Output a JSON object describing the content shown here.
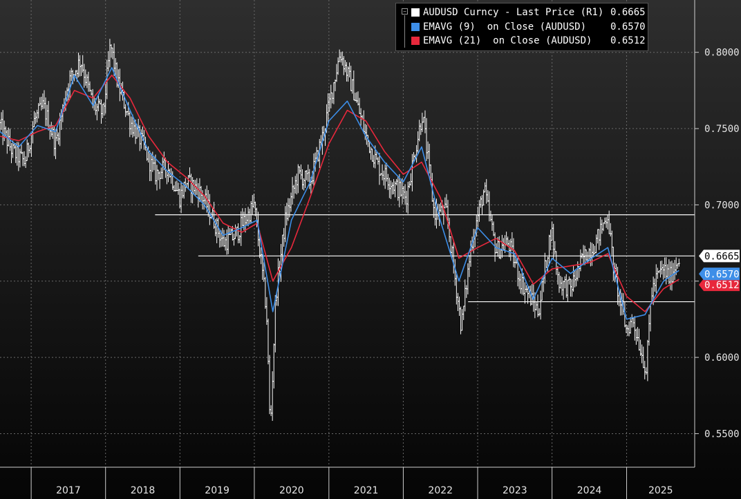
{
  "chart_data": {
    "type": "line",
    "x_axis": {
      "kind": "date",
      "labels": [
        "2017",
        "2018",
        "2019",
        "2020",
        "2021",
        "2022",
        "2023",
        "2024",
        "2025"
      ],
      "range": [
        "2016-08-01",
        "2025-12-01"
      ]
    },
    "y_axis": {
      "position": "right",
      "range": [
        0.528,
        0.8343
      ],
      "tick_labels": [
        "0.8000",
        "0.7500",
        "0.7000",
        "0.6500",
        "0.6000",
        "0.5500"
      ],
      "ticks": [
        0.8,
        0.75,
        0.7,
        0.65,
        0.6,
        0.55
      ]
    },
    "grid": true,
    "legend_position": "top-right",
    "series": [
      {
        "name": "AUDUSD Curncy - Last Price (R1)",
        "last": "0.6665",
        "color": "#ffffff",
        "points": [
          [
            "2016-08-01",
            0.752
          ],
          [
            "2016-10-01",
            0.735
          ],
          [
            "2016-12-01",
            0.728
          ],
          [
            "2017-01-15",
            0.755
          ],
          [
            "2017-03-01",
            0.765
          ],
          [
            "2017-05-01",
            0.74
          ],
          [
            "2017-07-01",
            0.78
          ],
          [
            "2017-09-01",
            0.795
          ],
          [
            "2017-11-01",
            0.765
          ],
          [
            "2017-12-20",
            0.76
          ],
          [
            "2018-01-25",
            0.805
          ],
          [
            "2018-03-01",
            0.78
          ],
          [
            "2018-05-01",
            0.755
          ],
          [
            "2018-07-01",
            0.74
          ],
          [
            "2018-09-01",
            0.72
          ],
          [
            "2018-11-01",
            0.725
          ],
          [
            "2018-12-31",
            0.705
          ],
          [
            "2019-02-01",
            0.715
          ],
          [
            "2019-04-01",
            0.71
          ],
          [
            "2019-06-01",
            0.695
          ],
          [
            "2019-08-01",
            0.675
          ],
          [
            "2019-10-01",
            0.68
          ],
          [
            "2019-12-31",
            0.7
          ],
          [
            "2020-02-01",
            0.665
          ],
          [
            "2020-03-01",
            0.63
          ],
          [
            "2020-03-19",
            0.551
          ],
          [
            "2020-04-15",
            0.64
          ],
          [
            "2020-06-01",
            0.69
          ],
          [
            "2020-08-01",
            0.72
          ],
          [
            "2020-10-01",
            0.715
          ],
          [
            "2020-12-01",
            0.745
          ],
          [
            "2021-02-25",
            0.8
          ],
          [
            "2021-05-01",
            0.775
          ],
          [
            "2021-07-01",
            0.745
          ],
          [
            "2021-09-01",
            0.725
          ],
          [
            "2021-11-01",
            0.715
          ],
          [
            "2022-01-15",
            0.705
          ],
          [
            "2022-04-05",
            0.76
          ],
          [
            "2022-06-01",
            0.695
          ],
          [
            "2022-08-01",
            0.695
          ],
          [
            "2022-10-13",
            0.62
          ],
          [
            "2022-12-01",
            0.675
          ],
          [
            "2023-02-02",
            0.71
          ],
          [
            "2023-04-01",
            0.67
          ],
          [
            "2023-06-01",
            0.675
          ],
          [
            "2023-08-01",
            0.65
          ],
          [
            "2023-10-26",
            0.63
          ],
          [
            "2023-12-28",
            0.685
          ],
          [
            "2024-02-01",
            0.65
          ],
          [
            "2024-04-01",
            0.645
          ],
          [
            "2024-06-01",
            0.665
          ],
          [
            "2024-08-01",
            0.675
          ],
          [
            "2024-09-30",
            0.694
          ],
          [
            "2024-11-01",
            0.655
          ],
          [
            "2024-12-31",
            0.618
          ],
          [
            "2025-02-01",
            0.625
          ],
          [
            "2025-04-08",
            0.591
          ],
          [
            "2025-05-01",
            0.642
          ],
          [
            "2025-06-01",
            0.653
          ],
          [
            "2025-07-01",
            0.658
          ],
          [
            "2025-08-01",
            0.652
          ],
          [
            "2025-09-15",
            0.6665
          ]
        ]
      },
      {
        "name": "EMAVG (9)  on Close (AUDUSD)",
        "last": "0.6570",
        "color": "#3d8ee8",
        "points": [
          [
            "2016-08-01",
            0.748
          ],
          [
            "2016-11-01",
            0.738
          ],
          [
            "2017-02-01",
            0.752
          ],
          [
            "2017-05-01",
            0.748
          ],
          [
            "2017-08-01",
            0.785
          ],
          [
            "2017-11-01",
            0.765
          ],
          [
            "2018-02-01",
            0.79
          ],
          [
            "2018-05-01",
            0.762
          ],
          [
            "2018-08-01",
            0.735
          ],
          [
            "2018-11-01",
            0.722
          ],
          [
            "2019-02-01",
            0.712
          ],
          [
            "2019-05-01",
            0.7
          ],
          [
            "2019-08-01",
            0.68
          ],
          [
            "2019-11-01",
            0.685
          ],
          [
            "2020-01-15",
            0.69
          ],
          [
            "2020-04-01",
            0.63
          ],
          [
            "2020-07-01",
            0.69
          ],
          [
            "2020-10-01",
            0.715
          ],
          [
            "2021-01-01",
            0.755
          ],
          [
            "2021-04-01",
            0.768
          ],
          [
            "2021-07-01",
            0.745
          ],
          [
            "2021-10-01",
            0.728
          ],
          [
            "2022-01-01",
            0.715
          ],
          [
            "2022-04-01",
            0.738
          ],
          [
            "2022-07-01",
            0.69
          ],
          [
            "2022-10-01",
            0.65
          ],
          [
            "2023-01-01",
            0.685
          ],
          [
            "2023-04-01",
            0.672
          ],
          [
            "2023-07-01",
            0.668
          ],
          [
            "2023-10-01",
            0.638
          ],
          [
            "2024-01-01",
            0.665
          ],
          [
            "2024-04-01",
            0.655
          ],
          [
            "2024-07-01",
            0.664
          ],
          [
            "2024-10-01",
            0.672
          ],
          [
            "2025-01-01",
            0.625
          ],
          [
            "2025-04-01",
            0.628
          ],
          [
            "2025-07-01",
            0.65
          ],
          [
            "2025-09-15",
            0.657
          ]
        ]
      },
      {
        "name": "EMAVG (21)  on Close (AUDUSD)",
        "last": "0.6512",
        "color": "#e8283c",
        "points": [
          [
            "2016-08-01",
            0.745
          ],
          [
            "2016-11-01",
            0.742
          ],
          [
            "2017-02-01",
            0.748
          ],
          [
            "2017-05-01",
            0.752
          ],
          [
            "2017-08-01",
            0.775
          ],
          [
            "2017-11-01",
            0.77
          ],
          [
            "2018-02-01",
            0.785
          ],
          [
            "2018-05-01",
            0.77
          ],
          [
            "2018-08-01",
            0.745
          ],
          [
            "2018-11-01",
            0.728
          ],
          [
            "2019-02-01",
            0.718
          ],
          [
            "2019-05-01",
            0.706
          ],
          [
            "2019-08-01",
            0.688
          ],
          [
            "2019-11-01",
            0.682
          ],
          [
            "2020-01-15",
            0.688
          ],
          [
            "2020-04-01",
            0.65
          ],
          [
            "2020-07-01",
            0.672
          ],
          [
            "2020-10-01",
            0.705
          ],
          [
            "2021-01-01",
            0.74
          ],
          [
            "2021-04-01",
            0.762
          ],
          [
            "2021-07-01",
            0.755
          ],
          [
            "2021-10-01",
            0.735
          ],
          [
            "2022-01-01",
            0.72
          ],
          [
            "2022-04-01",
            0.728
          ],
          [
            "2022-07-01",
            0.705
          ],
          [
            "2022-10-01",
            0.665
          ],
          [
            "2023-01-01",
            0.672
          ],
          [
            "2023-04-01",
            0.678
          ],
          [
            "2023-07-01",
            0.67
          ],
          [
            "2023-10-01",
            0.648
          ],
          [
            "2024-01-01",
            0.658
          ],
          [
            "2024-04-01",
            0.66
          ],
          [
            "2024-07-01",
            0.662
          ],
          [
            "2024-10-01",
            0.668
          ],
          [
            "2025-01-01",
            0.64
          ],
          [
            "2025-04-01",
            0.63
          ],
          [
            "2025-07-01",
            0.645
          ],
          [
            "2025-09-15",
            0.6512
          ]
        ]
      }
    ],
    "horizontal_lines": [
      {
        "y": 0.6935,
        "from": "2018-09-01",
        "to": "2025-12-01"
      },
      {
        "y": 0.6665,
        "from": "2019-04-01",
        "to": "2025-12-01"
      },
      {
        "y": 0.6365,
        "from": "2022-11-15",
        "to": "2025-12-01"
      }
    ],
    "last_value_labels": [
      {
        "text": "0.6665",
        "value": 0.6665,
        "bg": "#ffffff",
        "fg": "#000000"
      },
      {
        "text": "0.6570",
        "value": 0.657,
        "bg": "#3d8ee8",
        "fg": "#ffffff"
      },
      {
        "text": "0.6512",
        "value": 0.6512,
        "bg": "#e8283c",
        "fg": "#ffffff"
      }
    ]
  }
}
